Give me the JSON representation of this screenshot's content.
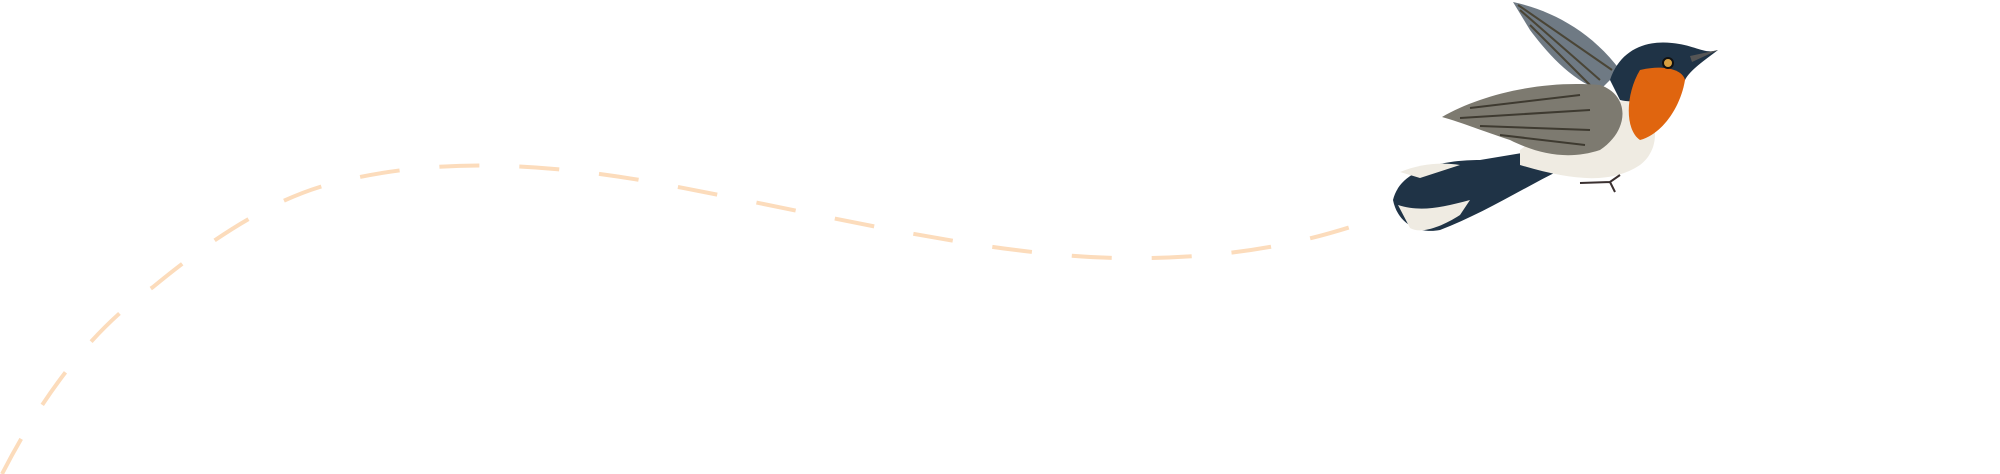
{
  "colors": {
    "background": "#ffffff",
    "flight_path": "#fcdcbc",
    "bird_dark_blue": "#1f3346",
    "bird_wing_gray": "#7d7a70",
    "bird_throat_orange": "#e0650f",
    "bird_belly": "#efebe2"
  },
  "icons": [
    "flight-path-dashed-line",
    "bird-illustration"
  ]
}
